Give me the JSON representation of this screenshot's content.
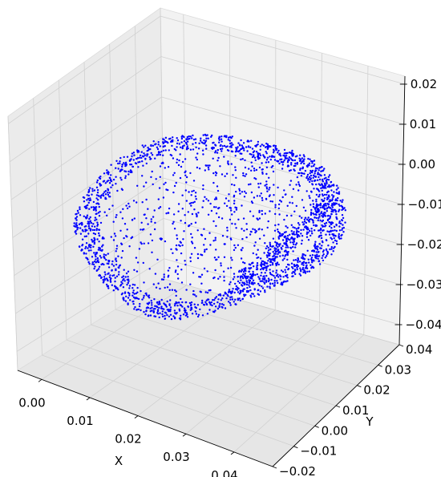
{
  "chart_data": {
    "type": "scatter",
    "projection": "3d",
    "title": "",
    "xlabel": "X",
    "ylabel": "Y",
    "zlabel": "",
    "x_ticks": [
      "0.00",
      "0.01",
      "0.02",
      "0.03",
      "0.04"
    ],
    "y_ticks": [
      "−0.02",
      "−0.01",
      "0.00",
      "0.01",
      "0.02",
      "0.03",
      "0.04"
    ],
    "z_ticks": [
      "0.02",
      "0.01",
      "0.00",
      "−0.01",
      "−0.02",
      "−0.03",
      "−0.04"
    ],
    "xlim": [
      -0.005,
      0.048
    ],
    "ylim": [
      -0.02,
      0.04
    ],
    "zlim": [
      -0.045,
      0.022
    ],
    "grid": true,
    "marker_color": "#0000ff",
    "marker_size": 1.2,
    "approx_point_count": 2200,
    "point_cloud": {
      "shape": "rounded hollow blob (scanned object surface)",
      "x_range": [
        0.0,
        0.046
      ],
      "y_range": [
        -0.012,
        0.038
      ],
      "z_range": [
        -0.04,
        0.003
      ]
    }
  }
}
